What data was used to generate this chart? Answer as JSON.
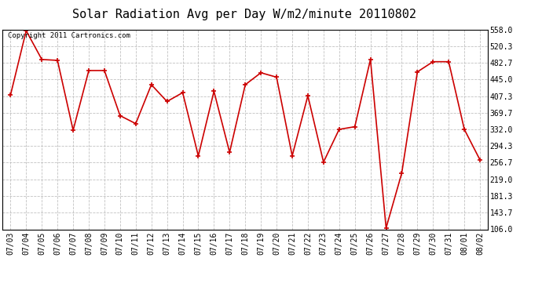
{
  "title": "Solar Radiation Avg per Day W/m2/minute 20110802",
  "copyright": "Copyright 2011 Cartronics.com",
  "line_color": "#cc0000",
  "bg_color": "#ffffff",
  "grid_color": "#bbbbbb",
  "dates": [
    "07/03",
    "07/04",
    "07/05",
    "07/06",
    "07/07",
    "07/08",
    "07/09",
    "07/10",
    "07/11",
    "07/12",
    "07/13",
    "07/14",
    "07/15",
    "07/16",
    "07/17",
    "07/18",
    "07/19",
    "07/20",
    "07/21",
    "07/22",
    "07/23",
    "07/24",
    "07/25",
    "07/26",
    "07/27",
    "07/28",
    "07/29",
    "07/30",
    "07/31",
    "08/01",
    "08/02"
  ],
  "values": [
    410,
    555,
    490,
    488,
    330,
    465,
    465,
    363,
    345,
    433,
    395,
    415,
    272,
    418,
    280,
    433,
    460,
    450,
    272,
    408,
    258,
    332,
    338,
    490,
    109,
    233,
    462,
    485,
    485,
    332,
    263
  ],
  "ylim": [
    106.0,
    558.0
  ],
  "yticks": [
    106.0,
    143.7,
    181.3,
    219.0,
    256.7,
    294.3,
    332.0,
    369.7,
    407.3,
    445.0,
    482.7,
    520.3,
    558.0
  ],
  "title_fontsize": 11,
  "tick_fontsize": 7,
  "copyright_fontsize": 6.5
}
